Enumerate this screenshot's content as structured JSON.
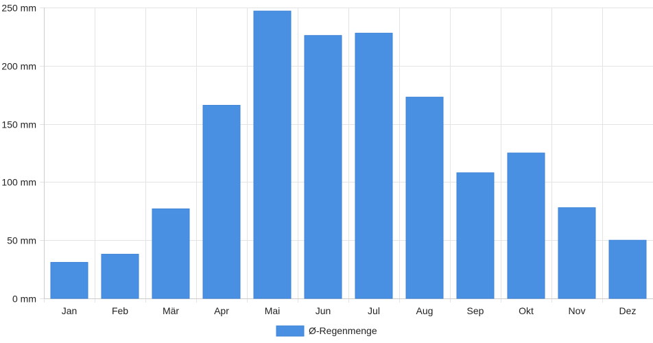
{
  "chart_data": {
    "type": "bar",
    "categories": [
      "Jan",
      "Feb",
      "Mär",
      "Apr",
      "Mai",
      "Jun",
      "Jul",
      "Aug",
      "Sep",
      "Okt",
      "Nov",
      "Dez"
    ],
    "series": [
      {
        "name": "Ø-Regenmenge",
        "values": [
          31,
          38,
          77,
          166,
          247,
          226,
          228,
          173,
          108,
          125,
          78,
          50
        ]
      }
    ],
    "y_unit": "mm",
    "ylim": [
      0,
      250
    ],
    "yticks": [
      0,
      50,
      100,
      150,
      200,
      250
    ],
    "ytick_labels": [
      "0 mm",
      "50 mm",
      "100 mm",
      "150 mm",
      "200 mm",
      "250 mm"
    ],
    "grid": true,
    "legend_position": "bottom-center",
    "bar_color": "#4a90e2"
  }
}
